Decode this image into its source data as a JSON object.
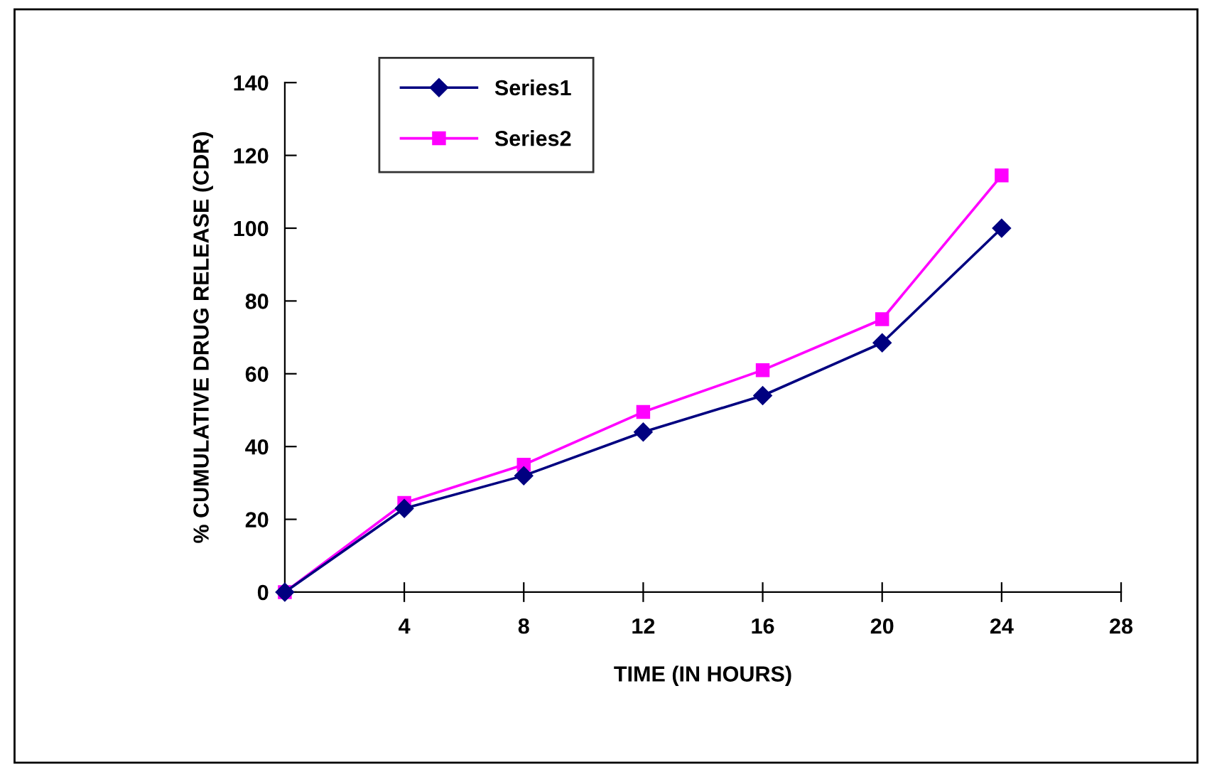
{
  "chart_data": {
    "type": "line",
    "xlabel": "TIME (IN HOURS)",
    "ylabel": "% CUMULATIVE DRUG RELEASE (CDR)",
    "x": [
      0,
      4,
      8,
      12,
      16,
      20,
      24
    ],
    "series": [
      {
        "name": "Series1",
        "color": "#000080",
        "marker": "diamond",
        "values": [
          0,
          23,
          32,
          44,
          54,
          68.5,
          100
        ]
      },
      {
        "name": "Series2",
        "color": "#ff00ff",
        "marker": "square",
        "values": [
          0,
          24.5,
          35,
          49.5,
          61,
          75,
          114.5
        ]
      }
    ],
    "xlim": [
      0,
      28
    ],
    "xticks": [
      4,
      8,
      12,
      16,
      20,
      24,
      28
    ],
    "ylim": [
      0,
      140
    ],
    "yticks": [
      0,
      20,
      40,
      60,
      80,
      100,
      120,
      140
    ],
    "grid": false,
    "legend": "top left",
    "line_style": "solid"
  }
}
